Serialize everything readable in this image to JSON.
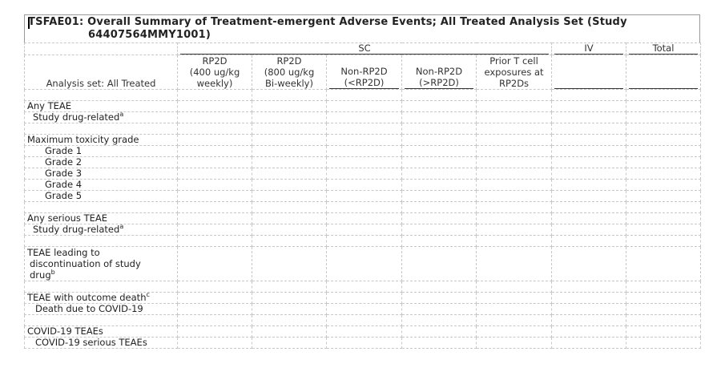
{
  "title": {
    "line1": "TSFAE01: Overall Summary of Treatment-emergent Adverse Events; All Treated Analysis Set (Study",
    "line2": "64407564MMY1001)"
  },
  "header": {
    "group_sc": "SC",
    "group_iv": "IV",
    "group_total": "Total",
    "columns": [
      {
        "l1": "RP2D",
        "l2": "(400 ug/kg",
        "l3": "weekly)"
      },
      {
        "l1": "RP2D",
        "l2": "(800 ug/kg",
        "l3": "Bi-weekly)"
      },
      {
        "l1": "Non-RP2D",
        "l2": "(<RP2D)"
      },
      {
        "l1": "Non-RP2D",
        "l2": "(>RP2D)"
      },
      {
        "l1": "Prior T cell",
        "l2": "exposures at",
        "l3": "RP2Ds"
      }
    ]
  },
  "rows": {
    "analysis_set": "Analysis set: All Treated",
    "any_teae": "Any TEAE",
    "study_drug_related_1": "Study drug-related",
    "sup_a": "a",
    "max_tox": "Maximum toxicity grade",
    "grade1": "Grade 1",
    "grade2": "Grade 2",
    "grade3": "Grade 3",
    "grade4": "Grade 4",
    "grade5": "Grade 5",
    "any_serious": "Any serious TEAE",
    "study_drug_related_2": "Study drug-related",
    "leading_l1": "TEAE leading to",
    "leading_l2": "discontinuation of study",
    "leading_l3": "drug",
    "sup_b": "b",
    "outcome_death": "TEAE with outcome death",
    "sup_c": "c",
    "death_covid": "Death due to COVID-19",
    "covid_teaes": "COVID-19 TEAEs",
    "covid_serious": "COVID-19 serious TEAEs"
  }
}
